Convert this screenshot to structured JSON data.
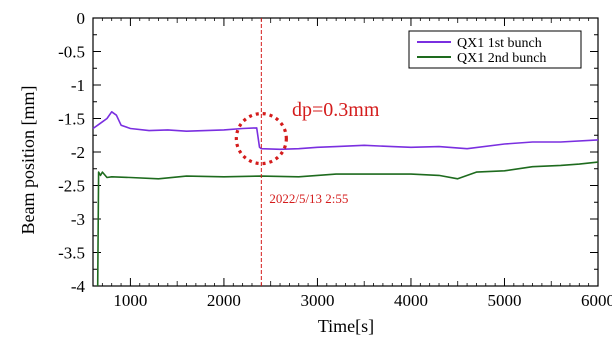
{
  "chart_data": {
    "type": "line",
    "xlabel": "Time[s]",
    "ylabel": "Beam position [mm]",
    "xlim": [
      600,
      6000
    ],
    "ylim": [
      -4,
      0
    ],
    "xticks": [
      1000,
      2000,
      3000,
      4000,
      5000,
      6000
    ],
    "yticks": [
      0,
      -0.5,
      -1,
      -1.5,
      -2,
      -2.5,
      -3,
      -3.5,
      -4
    ],
    "ytick_labels": [
      "0",
      "-0.5",
      "-1",
      "-1.5",
      "-2",
      "-2.5",
      "-3",
      "-3.5",
      "-4"
    ],
    "grid": false,
    "legend_position": "top-right",
    "series": [
      {
        "name": "QX1 1st bunch",
        "color": "#7a2fe0",
        "x": [
          600,
          650,
          700,
          750,
          800,
          850,
          900,
          1000,
          1200,
          1400,
          1600,
          1800,
          2000,
          2200,
          2350,
          2380,
          2400,
          2600,
          2800,
          3000,
          3200,
          3500,
          3800,
          4000,
          4300,
          4600,
          5000,
          5300,
          5600,
          6000
        ],
        "y": [
          -1.65,
          -1.6,
          -1.55,
          -1.5,
          -1.4,
          -1.45,
          -1.6,
          -1.65,
          -1.68,
          -1.67,
          -1.69,
          -1.68,
          -1.67,
          -1.65,
          -1.64,
          -1.93,
          -1.95,
          -1.96,
          -1.95,
          -1.93,
          -1.92,
          -1.9,
          -1.92,
          -1.93,
          -1.92,
          -1.95,
          -1.88,
          -1.85,
          -1.85,
          -1.82
        ]
      },
      {
        "name": "QX1 2nd bunch",
        "color": "#1e6b1e",
        "x": [
          650,
          660,
          680,
          700,
          750,
          800,
          1000,
          1300,
          1600,
          2000,
          2400,
          2800,
          3200,
          3600,
          4000,
          4300,
          4500,
          4700,
          5000,
          5300,
          5600,
          5800,
          6000
        ],
        "y": [
          -4.0,
          -2.3,
          -2.35,
          -2.3,
          -2.38,
          -2.37,
          -2.38,
          -2.4,
          -2.36,
          -2.37,
          -2.36,
          -2.37,
          -2.33,
          -2.33,
          -2.33,
          -2.35,
          -2.4,
          -2.3,
          -2.28,
          -2.22,
          -2.2,
          -2.18,
          -2.15
        ]
      }
    ],
    "annotations": {
      "marker_x": 2400,
      "marker_label": "2022/5/13  2:55",
      "circle_label": "dp=0.3mm",
      "circle_center": [
        2400,
        -1.8
      ],
      "annotation_color": "#d41c1c"
    }
  }
}
